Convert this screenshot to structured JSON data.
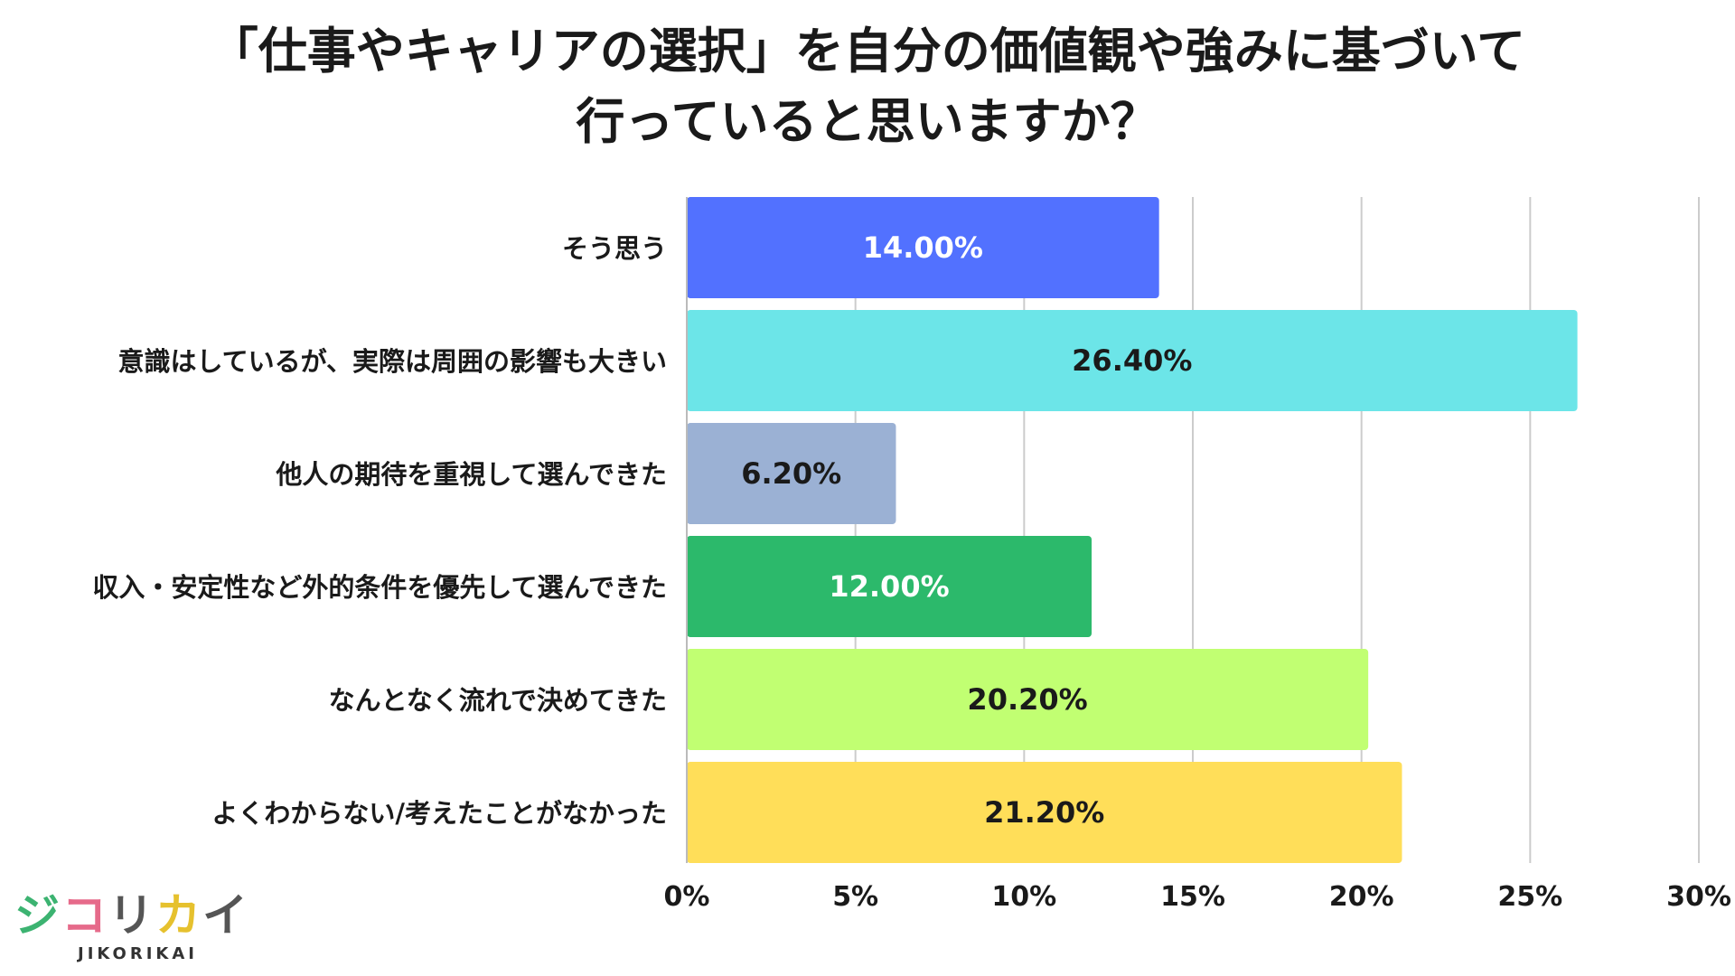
{
  "chart_data": {
    "type": "bar",
    "orientation": "horizontal",
    "title_lines": [
      "「仕事やキャリアの選択」を自分の価値観や強みに基づいて",
      "行っていると思いますか？"
    ],
    "categories": [
      "そう思う",
      "意識はしているが、実際は周囲の影響も大きい",
      "他人の期待を重視して選んできた",
      "収入・安定性など外的条件を優先して選んできた",
      "なんとなく流れで決めてきた",
      "よくわからない/考えたことがなかった"
    ],
    "values": [
      14.0,
      26.4,
      6.2,
      12.0,
      20.2,
      21.2
    ],
    "value_labels": [
      "14.00%",
      "26.40%",
      "6.20%",
      "12.00%",
      "20.20%",
      "21.20%"
    ],
    "colors": [
      "#5271ff",
      "#6ce5e8",
      "#9bb1d4",
      "#2cb96b",
      "#c1ff72",
      "#ffde59"
    ],
    "label_colors": [
      "#ffffff",
      "#1a1a1a",
      "#1a1a1a",
      "#ffffff",
      "#1a1a1a",
      "#1a1a1a"
    ],
    "xlim": [
      0,
      30
    ],
    "ticks": [
      0,
      5,
      10,
      15,
      20,
      25,
      30
    ],
    "tick_labels": [
      "0%",
      "5%",
      "10%",
      "15%",
      "20%",
      "25%",
      "30%"
    ],
    "grid": true,
    "grid_color": "#cccccc",
    "xlabel": "",
    "ylabel": ""
  },
  "logo": {
    "chars": [
      "ジ",
      "コ",
      "リ",
      "カ",
      "イ"
    ],
    "char_colors": [
      "#3cb371",
      "#e66a8a",
      "#555555",
      "#e6c12e",
      "#555555"
    ],
    "subtitle": "JIKORIKAI"
  }
}
